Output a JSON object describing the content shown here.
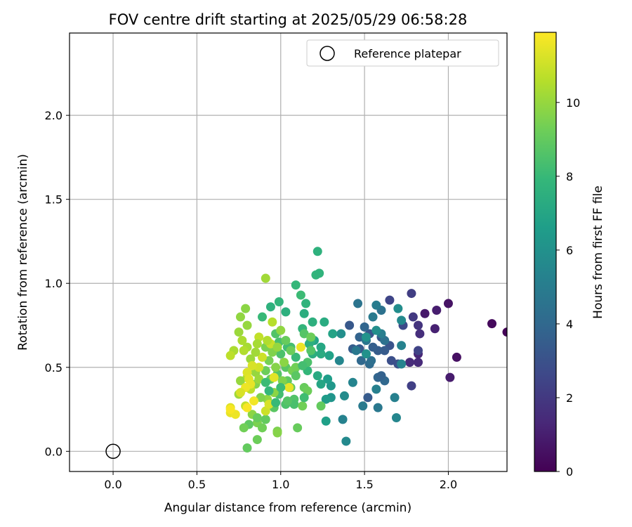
{
  "chart_data": {
    "type": "scatter",
    "title": "FOV centre drift starting at 2025/05/29 06:58:28",
    "xlabel": "Angular distance from reference (arcmin)",
    "ylabel": "Rotation from reference (arcmin)",
    "xlim": [
      -0.26,
      2.35
    ],
    "ylim": [
      -0.12,
      2.49
    ],
    "x_ticks": [
      0.0,
      0.5,
      1.0,
      1.5,
      2.0
    ],
    "x_tick_labels": [
      "0.0",
      "0.5",
      "1.0",
      "1.5",
      "2.0"
    ],
    "y_ticks": [
      0.0,
      0.5,
      1.0,
      1.5,
      2.0
    ],
    "y_tick_labels": [
      "0.0",
      "0.5",
      "1.0",
      "1.5",
      "2.0"
    ],
    "grid": true,
    "legend": {
      "position": "top-right",
      "entries": [
        "Reference platepar"
      ]
    },
    "colormap": "viridis",
    "colors": {
      "viridis": [
        "#440154",
        "#482878",
        "#3e4989",
        "#31688e",
        "#26828e",
        "#1f9e89",
        "#35b779",
        "#6ece58",
        "#b5de2b",
        "#fde725"
      ]
    },
    "colorbar": {
      "label": "Hours from first FF file",
      "range": [
        0,
        11.9
      ],
      "ticks": [
        0,
        2,
        4,
        6,
        8,
        10
      ],
      "tick_labels": [
        "0",
        "2",
        "4",
        "6",
        "8",
        "10"
      ]
    },
    "reference": {
      "label": "Reference platepar",
      "x": 0.0,
      "y": 0.0
    },
    "series": [
      {
        "name": "FOV centre drift",
        "points": [
          [
            2.35,
            0.71,
            0.1
          ],
          [
            2.26,
            0.76,
            0.3
          ],
          [
            2.05,
            0.56,
            0.5
          ],
          [
            2.0,
            0.88,
            0.6
          ],
          [
            2.01,
            0.44,
            0.9
          ],
          [
            1.86,
            0.82,
            0.8
          ],
          [
            1.93,
            0.84,
            1.0
          ],
          [
            1.92,
            0.73,
            1.1
          ],
          [
            1.82,
            0.58,
            1.3
          ],
          [
            1.82,
            0.53,
            1.4
          ],
          [
            1.77,
            0.53,
            1.5
          ],
          [
            1.83,
            0.7,
            1.6
          ],
          [
            1.82,
            0.75,
            1.8
          ],
          [
            1.79,
            0.8,
            2.0
          ],
          [
            1.78,
            0.94,
            2.2
          ],
          [
            1.65,
            0.9,
            2.5
          ],
          [
            1.78,
            0.39,
            2.3
          ],
          [
            1.82,
            0.6,
            2.4
          ],
          [
            1.73,
            0.75,
            2.7
          ],
          [
            1.7,
            0.52,
            3.0
          ],
          [
            1.66,
            0.54,
            2.9
          ],
          [
            1.65,
            0.63,
            3.1
          ],
          [
            1.6,
            0.68,
            3.3
          ],
          [
            1.62,
            0.6,
            3.4
          ],
          [
            1.58,
            0.6,
            3.5
          ],
          [
            1.55,
            0.62,
            3.6
          ],
          [
            1.53,
            0.7,
            3.2
          ],
          [
            1.47,
            0.61,
            3.4
          ],
          [
            1.43,
            0.61,
            3.5
          ],
          [
            1.41,
            0.75,
            3.3
          ],
          [
            1.52,
            0.32,
            3.4
          ],
          [
            1.62,
            0.42,
            4.0
          ],
          [
            1.58,
            0.44,
            3.9
          ],
          [
            1.6,
            0.45,
            3.7
          ],
          [
            1.47,
            0.68,
            3.8
          ],
          [
            1.5,
            0.74,
            3.9
          ],
          [
            1.48,
            0.54,
            4.0
          ],
          [
            1.53,
            0.52,
            4.1
          ],
          [
            1.54,
            0.54,
            4.3
          ],
          [
            1.6,
            0.84,
            4.5
          ],
          [
            1.62,
            0.66,
            4.4
          ],
          [
            1.46,
            0.88,
            4.6
          ],
          [
            1.51,
            0.66,
            4.7
          ],
          [
            1.45,
            0.6,
            4.8
          ],
          [
            1.55,
            0.8,
            4.9
          ],
          [
            1.57,
            0.87,
            5.0
          ],
          [
            1.6,
            0.7,
            5.1
          ],
          [
            1.72,
            0.63,
            5.3
          ],
          [
            1.68,
            0.32,
            5.2
          ],
          [
            1.69,
            0.2,
            5.5
          ],
          [
            1.72,
            0.78,
            5.6
          ],
          [
            1.7,
            0.85,
            5.8
          ],
          [
            1.72,
            0.52,
            5.4
          ],
          [
            1.58,
            0.26,
            4.8
          ],
          [
            1.49,
            0.27,
            4.9
          ],
          [
            1.57,
            0.37,
            5.2
          ],
          [
            1.37,
            0.19,
            5.3
          ],
          [
            1.39,
            0.06,
            5.6
          ],
          [
            1.35,
            0.54,
            5.5
          ],
          [
            1.38,
            0.33,
            5.7
          ],
          [
            1.43,
            0.41,
            5.4
          ],
          [
            1.57,
            0.72,
            5.9
          ],
          [
            1.51,
            0.68,
            6.1
          ],
          [
            1.51,
            0.58,
            6.0
          ],
          [
            1.36,
            0.7,
            5.9
          ],
          [
            1.3,
            0.39,
            6.3
          ],
          [
            1.3,
            0.32,
            6.2
          ],
          [
            1.27,
            0.31,
            6.5
          ],
          [
            1.28,
            0.43,
            6.6
          ],
          [
            1.27,
            0.18,
            6.7
          ],
          [
            1.29,
            0.57,
            6.8
          ],
          [
            1.31,
            0.7,
            6.9
          ],
          [
            1.24,
            0.4,
            7.0
          ],
          [
            1.22,
            0.45,
            7.2
          ],
          [
            1.2,
            0.66,
            6.9
          ],
          [
            1.24,
            0.58,
            7.3
          ],
          [
            1.24,
            0.62,
            7.1
          ],
          [
            1.19,
            0.58,
            7.4
          ],
          [
            1.19,
            0.77,
            7.5
          ],
          [
            1.18,
            0.66,
            7.6
          ],
          [
            1.17,
            0.64,
            7.5
          ],
          [
            1.15,
            0.88,
            7.7
          ],
          [
            1.13,
            0.73,
            7.8
          ],
          [
            1.16,
            0.48,
            7.9
          ],
          [
            1.09,
            0.56,
            8.0
          ],
          [
            1.08,
            0.48,
            8.2
          ],
          [
            1.06,
            0.62,
            8.3
          ],
          [
            1.09,
            0.99,
            7.9
          ],
          [
            1.12,
            0.93,
            8.1
          ],
          [
            1.21,
            1.05,
            7.8
          ],
          [
            1.22,
            1.19,
            7.6
          ],
          [
            1.23,
            1.06,
            7.7
          ],
          [
            1.03,
            0.83,
            7.5
          ],
          [
            0.94,
            0.86,
            7.6
          ],
          [
            0.89,
            0.8,
            8.0
          ],
          [
            0.99,
            0.89,
            7.8
          ],
          [
            1.14,
            0.82,
            7.4
          ],
          [
            1.26,
            0.77,
            7.3
          ],
          [
            1.04,
            0.62,
            8.2
          ],
          [
            0.99,
            0.65,
            8.4
          ],
          [
            1.0,
            0.58,
            8.5
          ],
          [
            0.97,
            0.7,
            8.6
          ],
          [
            1.03,
            0.5,
            8.8
          ],
          [
            0.98,
            0.46,
            8.7
          ],
          [
            1.04,
            0.42,
            8.9
          ],
          [
            1.06,
            0.38,
            9.0
          ],
          [
            1.08,
            0.31,
            8.6
          ],
          [
            1.08,
            0.28,
            8.4
          ],
          [
            1.03,
            0.28,
            8.5
          ],
          [
            0.99,
            0.34,
            8.3
          ],
          [
            1.14,
            0.38,
            9.1
          ],
          [
            1.13,
            0.27,
            9.3
          ],
          [
            1.16,
            0.36,
            9.2
          ],
          [
            1.04,
            0.3,
            8.7
          ],
          [
            0.96,
            0.26,
            8.8
          ],
          [
            0.94,
            0.43,
            9.0
          ],
          [
            0.91,
            0.48,
            9.2
          ],
          [
            0.93,
            0.54,
            9.4
          ],
          [
            0.91,
            0.62,
            9.5
          ],
          [
            0.95,
            0.59,
            9.6
          ],
          [
            0.97,
            0.5,
            9.7
          ],
          [
            0.96,
            0.35,
            9.8
          ],
          [
            0.92,
            0.31,
            9.9
          ],
          [
            0.88,
            0.32,
            9.6
          ],
          [
            0.85,
            0.4,
            9.7
          ],
          [
            0.85,
            0.47,
            10.0
          ],
          [
            0.82,
            0.55,
            10.1
          ],
          [
            0.8,
            0.62,
            10.3
          ],
          [
            0.77,
            0.66,
            10.4
          ],
          [
            0.78,
            0.6,
            10.5
          ],
          [
            0.8,
            0.44,
            10.6
          ],
          [
            0.82,
            0.37,
            10.7
          ],
          [
            0.79,
            0.27,
            10.8
          ],
          [
            0.83,
            0.22,
            9.8
          ],
          [
            0.86,
            0.17,
            9.5
          ],
          [
            0.86,
            0.07,
            9.2
          ],
          [
            0.8,
            0.02,
            9.0
          ],
          [
            0.86,
            0.2,
            9.1
          ],
          [
            0.89,
            0.14,
            9.3
          ],
          [
            0.91,
            0.19,
            9.0
          ],
          [
            0.81,
            0.16,
            8.9
          ],
          [
            0.78,
            0.14,
            9.3
          ],
          [
            0.98,
            0.12,
            9.5
          ],
          [
            0.98,
            0.11,
            9.7
          ],
          [
            1.1,
            0.14,
            9.1
          ],
          [
            0.76,
            0.42,
            10.0
          ],
          [
            0.75,
            0.34,
            10.2
          ],
          [
            0.72,
            0.6,
            10.4
          ],
          [
            0.7,
            0.57,
            10.7
          ],
          [
            0.75,
            0.71,
            10.1
          ],
          [
            0.79,
            0.85,
            9.8
          ],
          [
            0.76,
            0.8,
            9.9
          ],
          [
            0.8,
            0.75,
            10.0
          ],
          [
            0.91,
            1.03,
            10.2
          ],
          [
            0.95,
            0.77,
            10.6
          ],
          [
            0.87,
            0.68,
            10.8
          ],
          [
            0.89,
            0.56,
            11.0
          ],
          [
            0.87,
            0.5,
            11.1
          ],
          [
            0.83,
            0.51,
            11.2
          ],
          [
            0.8,
            0.47,
            11.3
          ],
          [
            0.81,
            0.43,
            11.4
          ],
          [
            0.82,
            0.4,
            11.5
          ],
          [
            0.79,
            0.38,
            11.6
          ],
          [
            0.84,
            0.3,
            11.7
          ],
          [
            0.8,
            0.26,
            11.8
          ],
          [
            0.76,
            0.35,
            11.2
          ],
          [
            0.7,
            0.26,
            11.3
          ],
          [
            0.7,
            0.23,
            11.5
          ],
          [
            0.73,
            0.22,
            11.6
          ],
          [
            0.7,
            0.25,
            11.8
          ],
          [
            0.91,
            0.24,
            11.0
          ],
          [
            0.93,
            0.28,
            11.2
          ],
          [
            0.96,
            0.44,
            11.4
          ],
          [
            1.05,
            0.38,
            11.5
          ],
          [
            1.12,
            0.62,
            11.6
          ],
          [
            0.94,
            0.64,
            10.9
          ],
          [
            0.92,
            0.66,
            10.5
          ],
          [
            0.86,
            0.64,
            10.3
          ],
          [
            0.85,
            0.59,
            10.2
          ],
          [
            0.87,
            0.43,
            10.1
          ],
          [
            0.98,
            0.62,
            10.0
          ],
          [
            1.0,
            0.72,
            9.9
          ],
          [
            1.02,
            0.53,
            9.8
          ],
          [
            1.01,
            0.42,
            9.6
          ],
          [
            1.07,
            0.48,
            9.4
          ],
          [
            1.09,
            0.5,
            9.3
          ],
          [
            1.03,
            0.66,
            9.1
          ],
          [
            1.06,
            0.6,
            9.2
          ],
          [
            1.09,
            0.45,
            8.8
          ],
          [
            1.14,
            0.7,
            8.7
          ],
          [
            1.18,
            0.6,
            8.6
          ],
          [
            1.16,
            0.53,
            8.5
          ],
          [
            1.18,
            0.68,
            9.2
          ],
          [
            1.13,
            0.51,
            8.3
          ],
          [
            1.14,
            0.32,
            8.2
          ],
          [
            1.0,
            0.38,
            8.1
          ],
          [
            0.97,
            0.29,
            8.0
          ],
          [
            0.93,
            0.36,
            7.9
          ],
          [
            0.91,
            0.41,
            8.1
          ],
          [
            1.24,
            0.27,
            9.0
          ]
        ]
      }
    ]
  }
}
